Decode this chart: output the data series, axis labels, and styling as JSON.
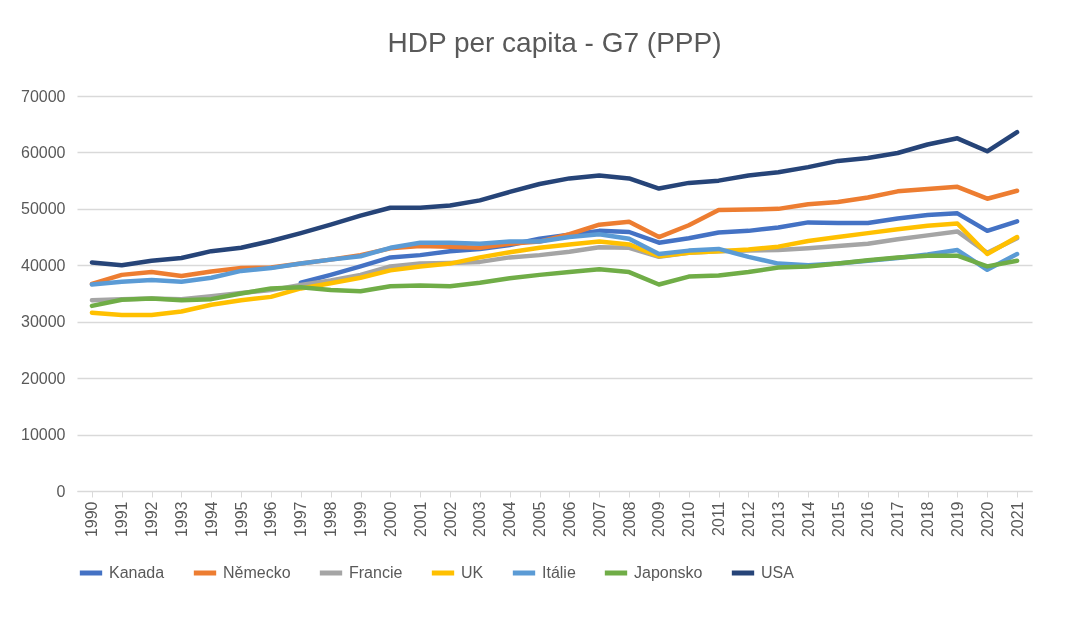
{
  "chart_data": {
    "type": "line",
    "title": "HDP per capita - G7 (PPP)",
    "categories": [
      "1990",
      "1991",
      "1992",
      "1993",
      "1994",
      "1995",
      "1996",
      "1997",
      "1998",
      "1999",
      "2000",
      "2001",
      "2002",
      "2003",
      "2004",
      "2005",
      "2006",
      "2007",
      "2008",
      "2009",
      "2010",
      "2011",
      "2012",
      "2013",
      "2014",
      "2015",
      "2016",
      "2017",
      "2018",
      "2019",
      "2020",
      "2021"
    ],
    "series": [
      {
        "name": "Kanada",
        "color": "#4472c4",
        "values": [
          null,
          null,
          null,
          null,
          null,
          null,
          null,
          36900,
          38300,
          39800,
          41400,
          41800,
          42500,
          42900,
          43600,
          44700,
          45400,
          46100,
          45900,
          44000,
          44800,
          45800,
          46100,
          46700,
          47600,
          47500,
          47500,
          48300,
          48900,
          49200,
          46100,
          47800
        ]
      },
      {
        "name": "Německo",
        "color": "#ed7d31",
        "values": [
          36700,
          38300,
          38800,
          38100,
          38900,
          39500,
          39600,
          40300,
          41000,
          41800,
          43000,
          43400,
          43300,
          43100,
          43800,
          44200,
          45500,
          47200,
          47700,
          45000,
          47100,
          49800,
          49900,
          50000,
          50800,
          51200,
          52000,
          53100,
          53500,
          53900,
          51800,
          53200
        ]
      },
      {
        "name": "Francie",
        "color": "#a5a5a5",
        "values": [
          33800,
          34000,
          34100,
          34000,
          34500,
          35100,
          35600,
          36500,
          37300,
          38300,
          39800,
          40300,
          40400,
          40600,
          41400,
          41800,
          42400,
          43200,
          43100,
          41500,
          42200,
          42500,
          42600,
          42700,
          43000,
          43400,
          43800,
          44600,
          45300,
          46000,
          42200,
          44800
        ]
      },
      {
        "name": "UK",
        "color": "#ffc000",
        "values": [
          31600,
          31200,
          31200,
          31800,
          33000,
          33800,
          34400,
          35900,
          36800,
          37800,
          39100,
          39800,
          40300,
          41400,
          42300,
          43100,
          43700,
          44200,
          43700,
          41600,
          42200,
          42500,
          42800,
          43300,
          44300,
          45000,
          45700,
          46400,
          47000,
          47400,
          42000,
          45000
        ]
      },
      {
        "name": "Itálie",
        "color": "#5b9bd5",
        "values": [
          36600,
          37100,
          37400,
          37100,
          37800,
          39000,
          39500,
          40300,
          41000,
          41600,
          43100,
          44000,
          44000,
          43800,
          44200,
          44200,
          45000,
          45500,
          44700,
          42000,
          42600,
          42900,
          41500,
          40300,
          40000,
          40300,
          40800,
          41300,
          41900,
          42700,
          39200,
          42000
        ]
      },
      {
        "name": "Japonsko",
        "color": "#70ad47",
        "values": [
          32800,
          33900,
          34100,
          33800,
          34000,
          35000,
          35900,
          36100,
          35600,
          35400,
          36300,
          36400,
          36300,
          36900,
          37700,
          38300,
          38800,
          39300,
          38800,
          36600,
          38000,
          38200,
          38800,
          39600,
          39800,
          40300,
          40900,
          41400,
          41700,
          41700,
          39800,
          40800
        ]
      },
      {
        "name": "USA",
        "color": "#264478",
        "values": [
          40500,
          40000,
          40800,
          41300,
          42500,
          43100,
          44300,
          45700,
          47200,
          48800,
          50200,
          50200,
          50600,
          51500,
          53000,
          54400,
          55400,
          55900,
          55400,
          53600,
          54600,
          55000,
          55900,
          56500,
          57400,
          58500,
          59000,
          59900,
          61400,
          62500,
          60200,
          63600
        ]
      }
    ],
    "ylim": [
      0,
      70000
    ],
    "yticks": [
      0,
      10000,
      20000,
      30000,
      40000,
      50000,
      60000,
      70000
    ],
    "grid": "y",
    "legend": "bottom",
    "line_style": "solid",
    "marker": "none"
  }
}
